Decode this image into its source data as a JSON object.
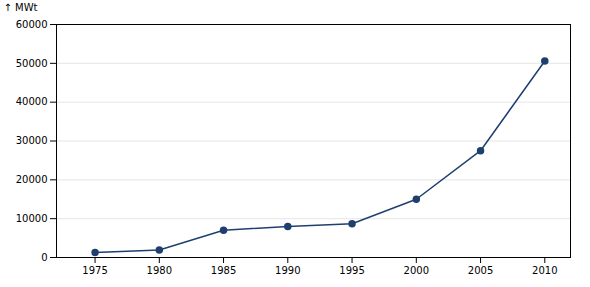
{
  "chart_data": {
    "type": "line",
    "x": [
      1975,
      1980,
      1985,
      1990,
      1995,
      2000,
      2005,
      2010
    ],
    "values": [
      1300,
      1950,
      7000,
      8000,
      8700,
      15000,
      27500,
      50600
    ],
    "color": "#1F3F6E",
    "marker": "circle",
    "ylabel": "MWt",
    "xlim": [
      1972,
      2012
    ],
    "xticks": [
      1975,
      1980,
      1985,
      1990,
      1995,
      2000,
      2005,
      2010
    ],
    "ylim": [
      0,
      60000
    ],
    "yticks": [
      0,
      10000,
      20000,
      30000,
      40000,
      50000,
      60000
    ],
    "grid": true
  }
}
